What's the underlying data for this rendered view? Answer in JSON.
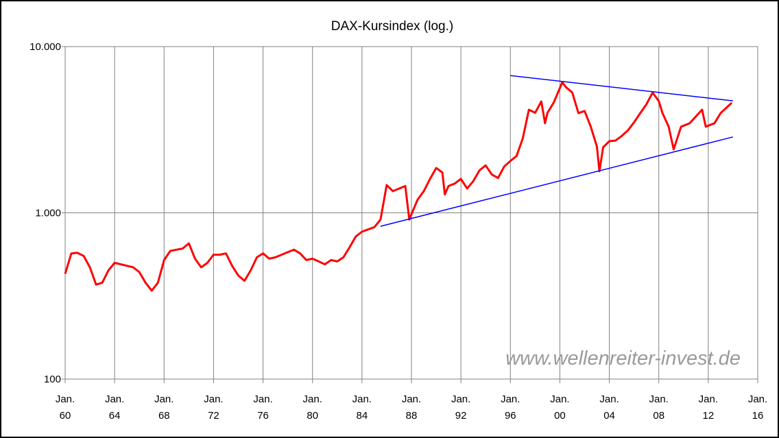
{
  "chart_data": {
    "type": "line",
    "title": "DAX-Kursindex (log.)",
    "watermark": "www.wellenreiter-invest.de",
    "log_y": true,
    "grid": true,
    "xlim": [
      1960,
      2016
    ],
    "ylim": [
      100,
      10000
    ],
    "yticks": [
      100,
      {
        "value": 1000,
        "label": "1.000"
      },
      {
        "value": 10000,
        "label": "10.000"
      }
    ],
    "xticks": [
      {
        "value": 1960,
        "label": "Jan. 60"
      },
      {
        "value": 1964,
        "label": "Jan. 64"
      },
      {
        "value": 1968,
        "label": "Jan. 68"
      },
      {
        "value": 1972,
        "label": "Jan. 72"
      },
      {
        "value": 1976,
        "label": "Jan. 76"
      },
      {
        "value": 1980,
        "label": "Jan. 80"
      },
      {
        "value": 1984,
        "label": "Jan. 84"
      },
      {
        "value": 1988,
        "label": "Jan. 88"
      },
      {
        "value": 1992,
        "label": "Jan. 92"
      },
      {
        "value": 1996,
        "label": "Jan. 96"
      },
      {
        "value": 2000,
        "label": "Jan. 00"
      },
      {
        "value": 2004,
        "label": "Jan. 04"
      },
      {
        "value": 2008,
        "label": "Jan. 08"
      },
      {
        "value": 2012,
        "label": "Jan. 12"
      },
      {
        "value": 2016,
        "label": "Jan. 16"
      }
    ],
    "x": [
      1960,
      1960.5,
      1961,
      1961.5,
      1962,
      1962.5,
      1963,
      1963.5,
      1964,
      1964.5,
      1965,
      1965.5,
      1966,
      1966.5,
      1967,
      1967.5,
      1968,
      1968.5,
      1969,
      1969.5,
      1970,
      1970.5,
      1971,
      1971.5,
      1972,
      1972.5,
      1973,
      1973.5,
      1974,
      1974.5,
      1975,
      1975.5,
      1976,
      1976.5,
      1977,
      1977.5,
      1978,
      1978.5,
      1979,
      1979.5,
      1980,
      1980.5,
      1981,
      1981.5,
      1982,
      1982.5,
      1983,
      1983.5,
      1984,
      1984.5,
      1985,
      1985.5,
      1986,
      1986.5,
      1987,
      1987.5,
      1987.83,
      1988,
      1988.5,
      1989,
      1989.5,
      1990,
      1990.5,
      1990.7,
      1991,
      1991.5,
      1992,
      1992.5,
      1993,
      1993.5,
      1994,
      1994.5,
      1995,
      1995.5,
      1996,
      1996.5,
      1997,
      1997.5,
      1998,
      1998.5,
      1998.8,
      1999,
      1999.5,
      2000.2,
      2000.5,
      2001,
      2001.5,
      2002,
      2002.5,
      2003,
      2003.2,
      2003.5,
      2004,
      2004.5,
      2005,
      2005.5,
      2006,
      2006.5,
      2007,
      2007.5,
      2008,
      2008.3,
      2008.8,
      2009.2,
      2009.8,
      2010.5,
      2011,
      2011.5,
      2011.8,
      2012.5,
      2013,
      2013.9
    ],
    "series": [
      {
        "color": "#ff0000",
        "values": [
          430,
          570,
          575,
          550,
          470,
          370,
          380,
          450,
          500,
          490,
          480,
          470,
          440,
          380,
          340,
          380,
          520,
          590,
          600,
          610,
          655,
          530,
          470,
          500,
          560,
          560,
          570,
          480,
          420,
          390,
          450,
          540,
          570,
          530,
          540,
          560,
          580,
          600,
          570,
          520,
          530,
          510,
          490,
          520,
          510,
          540,
          620,
          720,
          770,
          795,
          820,
          910,
          1470,
          1350,
          1400,
          1450,
          910,
          980,
          1200,
          1350,
          1600,
          1860,
          1750,
          1290,
          1450,
          1500,
          1600,
          1400,
          1550,
          1800,
          1930,
          1700,
          1620,
          1900,
          2050,
          2200,
          2800,
          4170,
          4000,
          4680,
          3460,
          4000,
          4600,
          6100,
          5700,
          5300,
          3980,
          4100,
          3300,
          2500,
          1780,
          2480,
          2700,
          2720,
          2900,
          3130,
          3500,
          3980,
          4500,
          5290,
          4700,
          3980,
          3300,
          2410,
          3300,
          3460,
          3800,
          4170,
          3300,
          3460,
          3980,
          4590
        ]
      }
    ],
    "trendlines": [
      {
        "color": "#0000ff",
        "x": [
          1996,
          2014
        ],
        "values": [
          6700,
          4720
        ]
      },
      {
        "color": "#0000ff",
        "x": [
          1985.5,
          2014
        ],
        "values": [
          830,
          2860
        ]
      }
    ]
  }
}
